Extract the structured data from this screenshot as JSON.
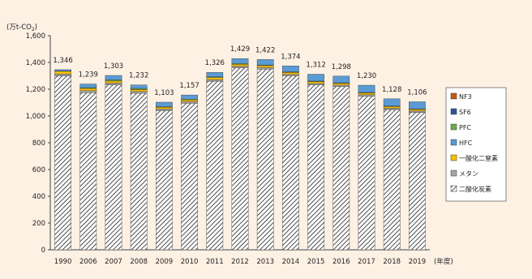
{
  "chart_data": {
    "type": "bar",
    "stacked": true,
    "unit_label": "(万t-CO",
    "unit_subscript": "2",
    "unit_close": ")",
    "x_axis_suffix": "(年度)",
    "categories": [
      "1990",
      "2006",
      "2007",
      "2008",
      "2009",
      "2010",
      "2011",
      "2012",
      "2013",
      "2014",
      "2015",
      "2016",
      "2017",
      "2018",
      "2019"
    ],
    "totals": [
      1346,
      1239,
      1303,
      1232,
      1103,
      1157,
      1326,
      1429,
      1422,
      1374,
      1312,
      1298,
      1230,
      1128,
      1106
    ],
    "total_labels": [
      "1,346",
      "1,239",
      "1,303",
      "1,232",
      "1,103",
      "1,157",
      "1,326",
      "1,429",
      "1,422",
      "1,374",
      "1,312",
      "1,298",
      "1,230",
      "1,128",
      "1,106"
    ],
    "ylim": [
      0,
      1600
    ],
    "yticks": [
      0,
      200,
      400,
      600,
      800,
      1000,
      1200,
      1400,
      1600
    ],
    "ytick_labels": [
      "0",
      "200",
      "400",
      "600",
      "800",
      "1,000",
      "1,200",
      "1,400",
      "1,600"
    ],
    "grid": false,
    "legend_position": "right",
    "series": [
      {
        "name": "二酸化炭素",
        "pattern": "hatch",
        "color": "#ffffff",
        "values": [
          1300,
          1175,
          1232,
          1170,
          1040,
          1095,
          1260,
          1360,
          1350,
          1300,
          1232,
          1220,
          1148,
          1048,
          1027
        ]
      },
      {
        "name": "メタン",
        "color": "#a6a6a6",
        "values": [
          14,
          14,
          14,
          13,
          12,
          12,
          12,
          12,
          12,
          11,
          11,
          11,
          11,
          10,
          10
        ]
      },
      {
        "name": "一酸化二窒素",
        "color": "#ffc000",
        "values": [
          20,
          17,
          15,
          14,
          13,
          13,
          14,
          14,
          14,
          14,
          13,
          13,
          13,
          12,
          12
        ]
      },
      {
        "name": "PFC",
        "color": "#70ad47",
        "values": [
          2,
          6,
          9,
          9,
          5,
          6,
          6,
          6,
          5,
          5,
          5,
          4,
          4,
          4,
          4
        ]
      },
      {
        "name": "HFC",
        "color": "#5b9bd5",
        "values": [
          10,
          27,
          33,
          26,
          33,
          31,
          34,
          37,
          41,
          44,
          51,
          50,
          54,
          54,
          53
        ]
      },
      {
        "name": "SF6",
        "color": "#2e5597",
        "values": [
          0,
          0,
          0,
          0,
          0,
          0,
          0,
          0,
          0,
          0,
          0,
          0,
          0,
          0,
          0
        ]
      },
      {
        "name": "NF3",
        "color": "#c55a11",
        "values": [
          0,
          0,
          0,
          0,
          0,
          0,
          0,
          0,
          0,
          0,
          0,
          0,
          0,
          0,
          0
        ]
      }
    ],
    "legend_order": [
      "NF3",
      "SF6",
      "PFC",
      "HFC",
      "一酸化二窒素",
      "メタン",
      "二酸化炭素"
    ]
  }
}
